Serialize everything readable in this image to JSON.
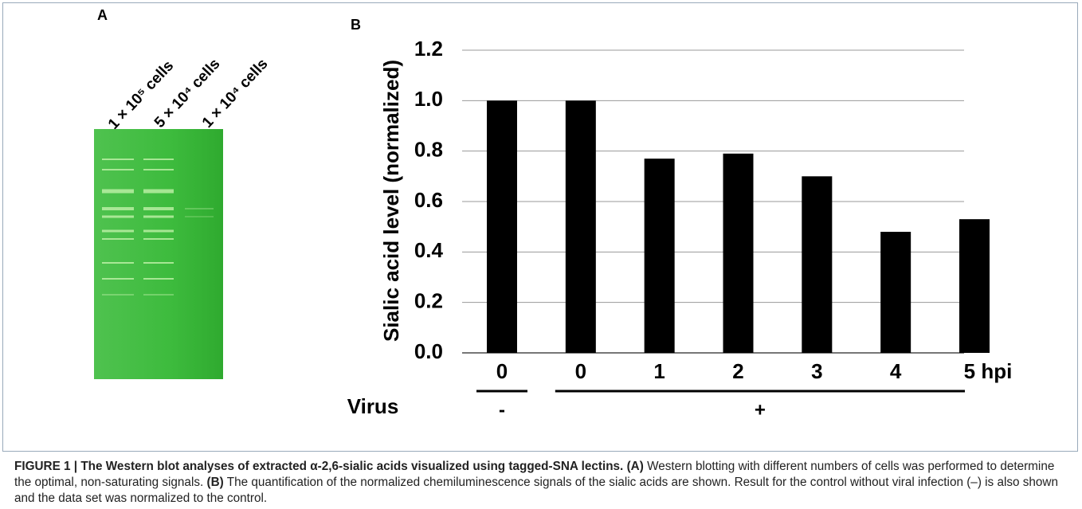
{
  "panel_a": {
    "label": "A",
    "lanes": [
      "1 × 10⁵ cells",
      "5 × 10⁴ cells",
      "1 × 10⁴ cells"
    ]
  },
  "chart_data": {
    "type": "bar",
    "panel_label": "B",
    "ylabel": "Sialic acid level (normalized)",
    "categories": [
      "0",
      "0",
      "1",
      "2",
      "3",
      "4",
      "5 hpi"
    ],
    "values": [
      1.0,
      1.0,
      0.77,
      0.79,
      0.7,
      0.48,
      0.53
    ],
    "color": "#000000",
    "ylim": [
      0,
      1.2
    ],
    "yticks": [
      {
        "value": 0,
        "label": "0.0"
      },
      {
        "value": 0.2,
        "label": "0.2"
      },
      {
        "value": 0.4,
        "label": "0.4"
      },
      {
        "value": 0.6,
        "label": "0.6"
      },
      {
        "value": 0.8,
        "label": "0.8"
      },
      {
        "value": 1.0,
        "label": "1.0"
      },
      {
        "value": 1.2,
        "label": "1.2"
      }
    ],
    "grid": true,
    "group_title": "Virus",
    "groups": [
      {
        "label": "-",
        "from": 0,
        "to": 0
      },
      {
        "label": "+",
        "from": 1,
        "to": 6
      }
    ]
  },
  "caption": {
    "title": "FIGURE 1 | The Western blot analyses of extracted α-2,6-sialic acids visualized using tagged-SNA lectins.",
    "a_label": "(A)",
    "a_text": "Western blotting with different numbers of cells was performed to determine the optimal, non-saturating signals.",
    "b_label": "(B)",
    "b_text": "The quantification of the normalized chemiluminescence signals of the sialic acids are shown. Result for the control without viral infection (–) is also shown and the data set was normalized to the control."
  }
}
